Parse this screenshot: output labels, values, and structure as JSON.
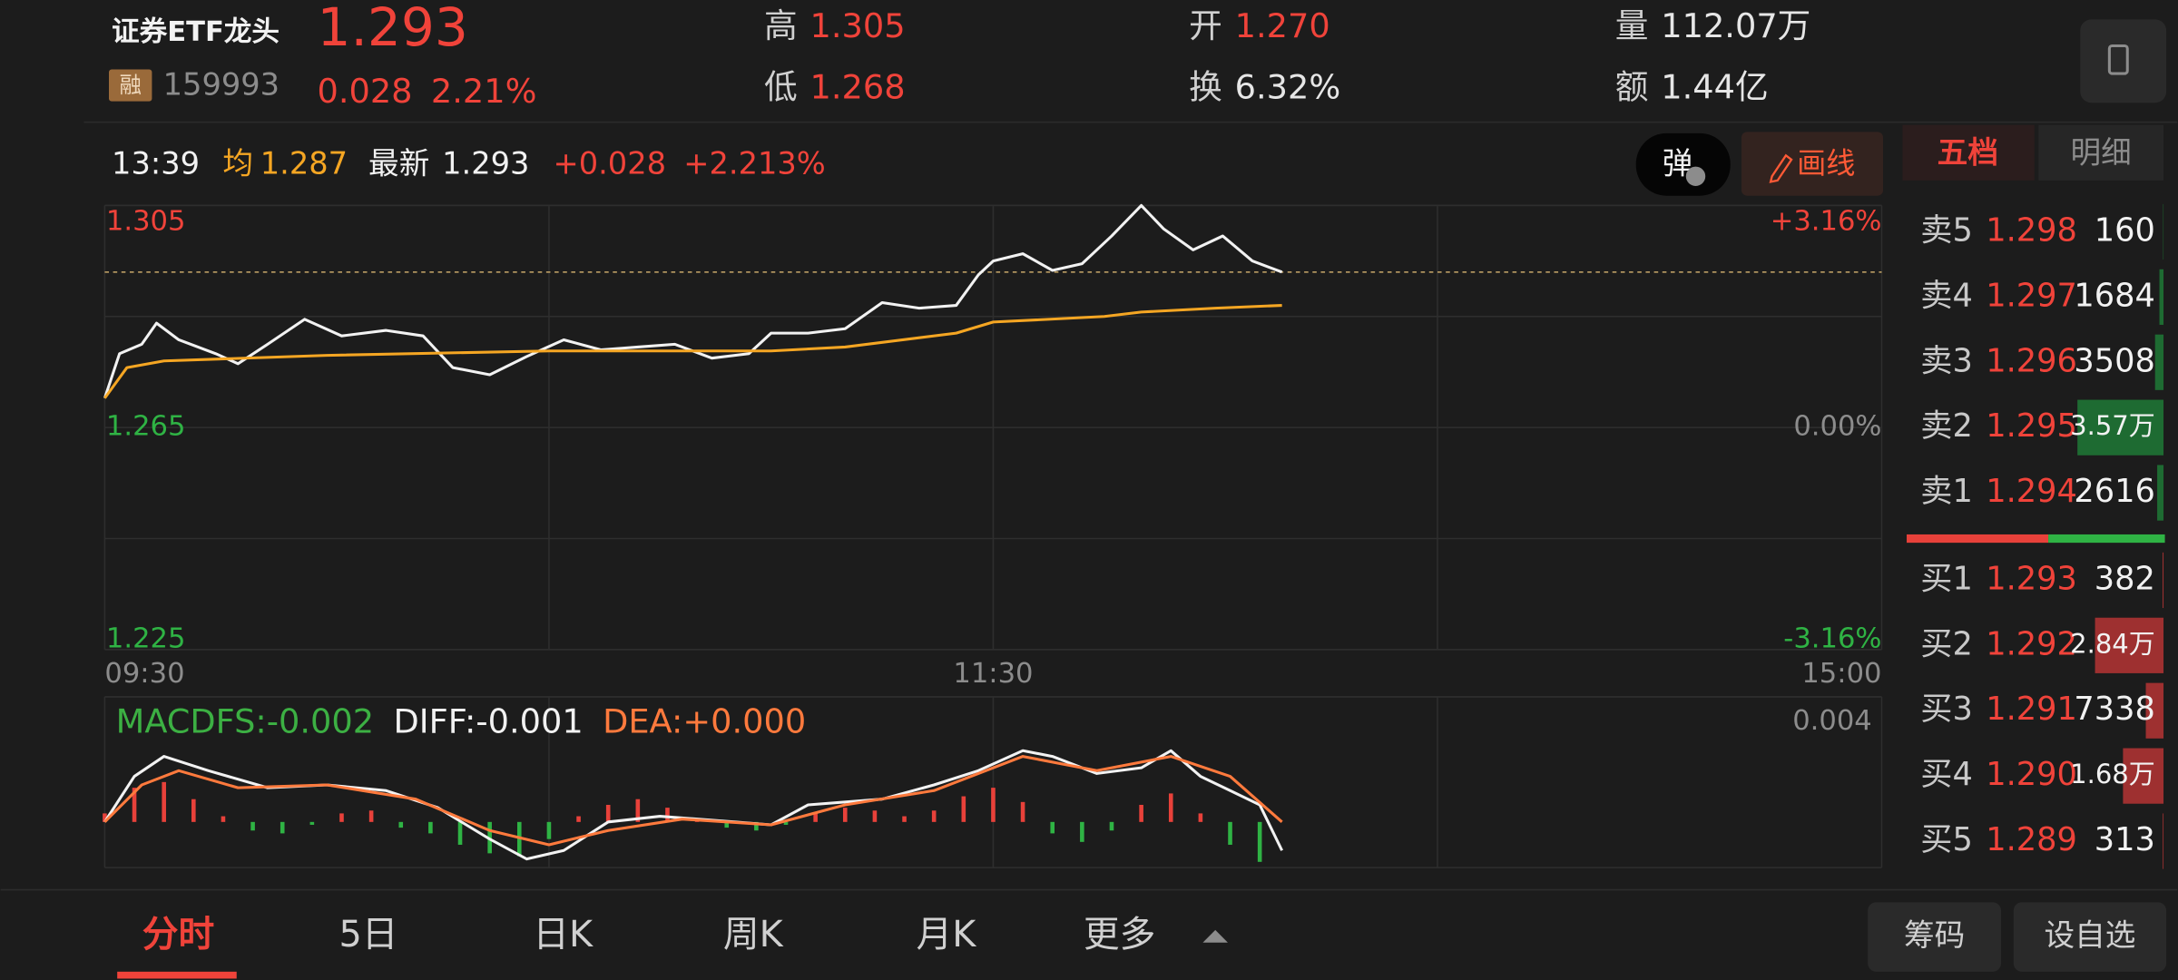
{
  "header": {
    "title": "证券ETF龙头",
    "price": "1.293",
    "change": "0.028",
    "change_pct": "2.21%",
    "margin_tag": "融",
    "code": "159993",
    "stats": [
      {
        "label": "高",
        "value": "1.305",
        "color": "#f0433a"
      },
      {
        "label": "低",
        "value": "1.268",
        "color": "#f0433a"
      },
      {
        "label": "开",
        "value": "1.270",
        "color": "#f0433a"
      },
      {
        "label": "换",
        "value": "6.32%",
        "color": "#e6e6e6"
      },
      {
        "label": "量",
        "value": "112.07万",
        "color": "#e6e6e6"
      },
      {
        "label": "额",
        "value": "1.44亿",
        "color": "#e6e6e6"
      }
    ]
  },
  "info_bar": {
    "time": "13:39",
    "avg_label": "均",
    "avg": "1.287",
    "latest_label": "最新",
    "latest": "1.293",
    "change": "+0.028",
    "change_pct": "+2.213%"
  },
  "buttons": {
    "danmu": "弹",
    "draw": "画线"
  },
  "book_tabs": [
    "五档",
    "明细"
  ],
  "chart_data": [
    {
      "type": "line",
      "xlim": [
        0,
        240
      ],
      "xticks": [
        {
          "value": 0,
          "label": "09:30"
        },
        {
          "value": 120,
          "label": "11:30"
        },
        {
          "value": 240,
          "label": "15:00"
        }
      ],
      "ylim": [
        1.225,
        1.305
      ],
      "yticks": [
        1.305,
        1.265,
        1.225
      ],
      "y2lim": [
        -3.16,
        3.16
      ],
      "y2ticks": [
        {
          "value": 3.16,
          "label": "+3.16%"
        },
        {
          "value": 0,
          "label": "0.00%"
        },
        {
          "value": -3.16,
          "label": "-3.16%"
        }
      ],
      "ref_line": 1.293,
      "grid": true,
      "series": [
        {
          "type": "line",
          "color": "#f2f2f2",
          "x": [
            0,
            2,
            5,
            7,
            10,
            15,
            18,
            22,
            27,
            32,
            38,
            43,
            47,
            52,
            57,
            62,
            67,
            72,
            77,
            82,
            87,
            90,
            95,
            100,
            105,
            110,
            115,
            118,
            120,
            124,
            128,
            132,
            136,
            140,
            143,
            147,
            151,
            155,
            159
          ],
          "values": [
            1.2703,
            1.2783,
            1.28,
            1.2838,
            1.2808,
            1.2783,
            1.2765,
            1.28,
            1.2845,
            1.2815,
            1.2825,
            1.2815,
            1.2758,
            1.2745,
            1.2778,
            1.2808,
            1.279,
            1.2795,
            1.28,
            1.2775,
            1.2783,
            1.282,
            1.282,
            1.2828,
            1.2875,
            1.2865,
            1.287,
            1.2925,
            1.295,
            1.2963,
            1.2933,
            1.2945,
            1.2995,
            1.305,
            1.3008,
            1.297,
            1.2995,
            1.295,
            1.293
          ]
        },
        {
          "type": "line",
          "color": "#f5a623",
          "x": [
            0,
            3,
            8,
            30,
            60,
            90,
            100,
            115,
            120,
            135,
            140,
            150,
            159
          ],
          "values": [
            1.2703,
            1.2758,
            1.277,
            1.278,
            1.2788,
            1.2788,
            1.2795,
            1.282,
            1.284,
            1.285,
            1.2858,
            1.2865,
            1.287
          ]
        }
      ]
    },
    {
      "type": "macd",
      "xlim": [
        0,
        240
      ],
      "ylim": [
        -0.0016,
        0.004
      ],
      "yticks": [
        0.004
      ],
      "legend": [
        {
          "text": "MACDFS:-0.002",
          "color": "#3cb043"
        },
        {
          "text": "DIFF:-0.001",
          "color": "#f2f2f2"
        },
        {
          "text": "DEA:+0.000",
          "color": "#ff7a3d"
        }
      ],
      "series": [
        {
          "type": "bar",
          "color_up": "#e8413a",
          "color_down": "#2fb344",
          "x": [
            0,
            4,
            8,
            12,
            16,
            20,
            24,
            28,
            32,
            36,
            40,
            44,
            48,
            52,
            56,
            60,
            64,
            68,
            72,
            76,
            80,
            84,
            88,
            92,
            96,
            100,
            104,
            108,
            112,
            116,
            120,
            124,
            128,
            132,
            136,
            140,
            144,
            148,
            152,
            156
          ],
          "values": [
            0.0003,
            0.0012,
            0.0014,
            0.0008,
            0.0002,
            -0.0003,
            -0.0004,
            -0.0001,
            0.0003,
            0.0004,
            -0.0002,
            -0.0004,
            -0.0008,
            -0.0011,
            -0.0012,
            -0.0006,
            0.0002,
            0.0006,
            0.0008,
            0.0005,
            0.0001,
            -0.0002,
            -0.0003,
            -0.0001,
            0.0003,
            0.0005,
            0.0004,
            0.0002,
            0.0004,
            0.0009,
            0.0012,
            0.0007,
            -0.0004,
            -0.0007,
            -0.0003,
            0.0006,
            0.001,
            0.0003,
            -0.0008,
            -0.0014
          ]
        },
        {
          "type": "line",
          "color": "#f2f2f2",
          "x": [
            0,
            4,
            8,
            14,
            22,
            30,
            38,
            45,
            52,
            57,
            62,
            68,
            75,
            85,
            90,
            95,
            105,
            112,
            118,
            124,
            128,
            134,
            140,
            144,
            148,
            152,
            156,
            159
          ],
          "values": [
            0,
            0.0016,
            0.0023,
            0.0018,
            0.0012,
            0.0013,
            0.0011,
            0.0005,
            -0.0006,
            -0.0013,
            -0.001,
            0,
            0.0002,
            0,
            -0.0001,
            0.0006,
            0.0008,
            0.0013,
            0.0018,
            0.0025,
            0.0023,
            0.0017,
            0.0019,
            0.0025,
            0.0016,
            0.0011,
            0.0006,
            -0.001
          ]
        },
        {
          "type": "line",
          "color": "#ff7a3d",
          "x": [
            0,
            5,
            10,
            18,
            30,
            42,
            52,
            60,
            68,
            78,
            90,
            100,
            112,
            124,
            134,
            144,
            152,
            159
          ],
          "values": [
            0,
            0.0013,
            0.0018,
            0.0012,
            0.0013,
            0.0008,
            -0.0003,
            -0.0008,
            -0.0003,
            0.0001,
            -0.0001,
            0.0006,
            0.0011,
            0.0023,
            0.0018,
            0.0023,
            0.0016,
            0
          ]
        }
      ]
    }
  ],
  "order_book": {
    "asks": {
      "labels": [
        "卖5",
        "卖4",
        "卖3",
        "卖2",
        "卖1"
      ],
      "prices": [
        "1.298",
        "1.297",
        "1.296",
        "1.295",
        "1.294"
      ],
      "volumes": [
        160,
        1684,
        3508,
        35700,
        2616
      ],
      "value_labels": [
        "160",
        "1684",
        "3508",
        "3.57万",
        "2616"
      ],
      "bar_color": "#1e6b32"
    },
    "bids": {
      "labels": [
        "买1",
        "买2",
        "买3",
        "买4",
        "买5"
      ],
      "prices": [
        "1.293",
        "1.292",
        "1.291",
        "1.290",
        "1.289"
      ],
      "volumes": [
        382,
        28400,
        7338,
        16800,
        313
      ],
      "value_labels": [
        "382",
        "2.84万",
        "7338",
        "1.68万",
        "313"
      ],
      "bar_color": "#9e3030"
    }
  },
  "bottom_tabs": [
    "分时",
    "5日",
    "日K",
    "周K",
    "月K",
    "更多"
  ],
  "bottom_buttons": [
    "筹码",
    "设自选"
  ]
}
